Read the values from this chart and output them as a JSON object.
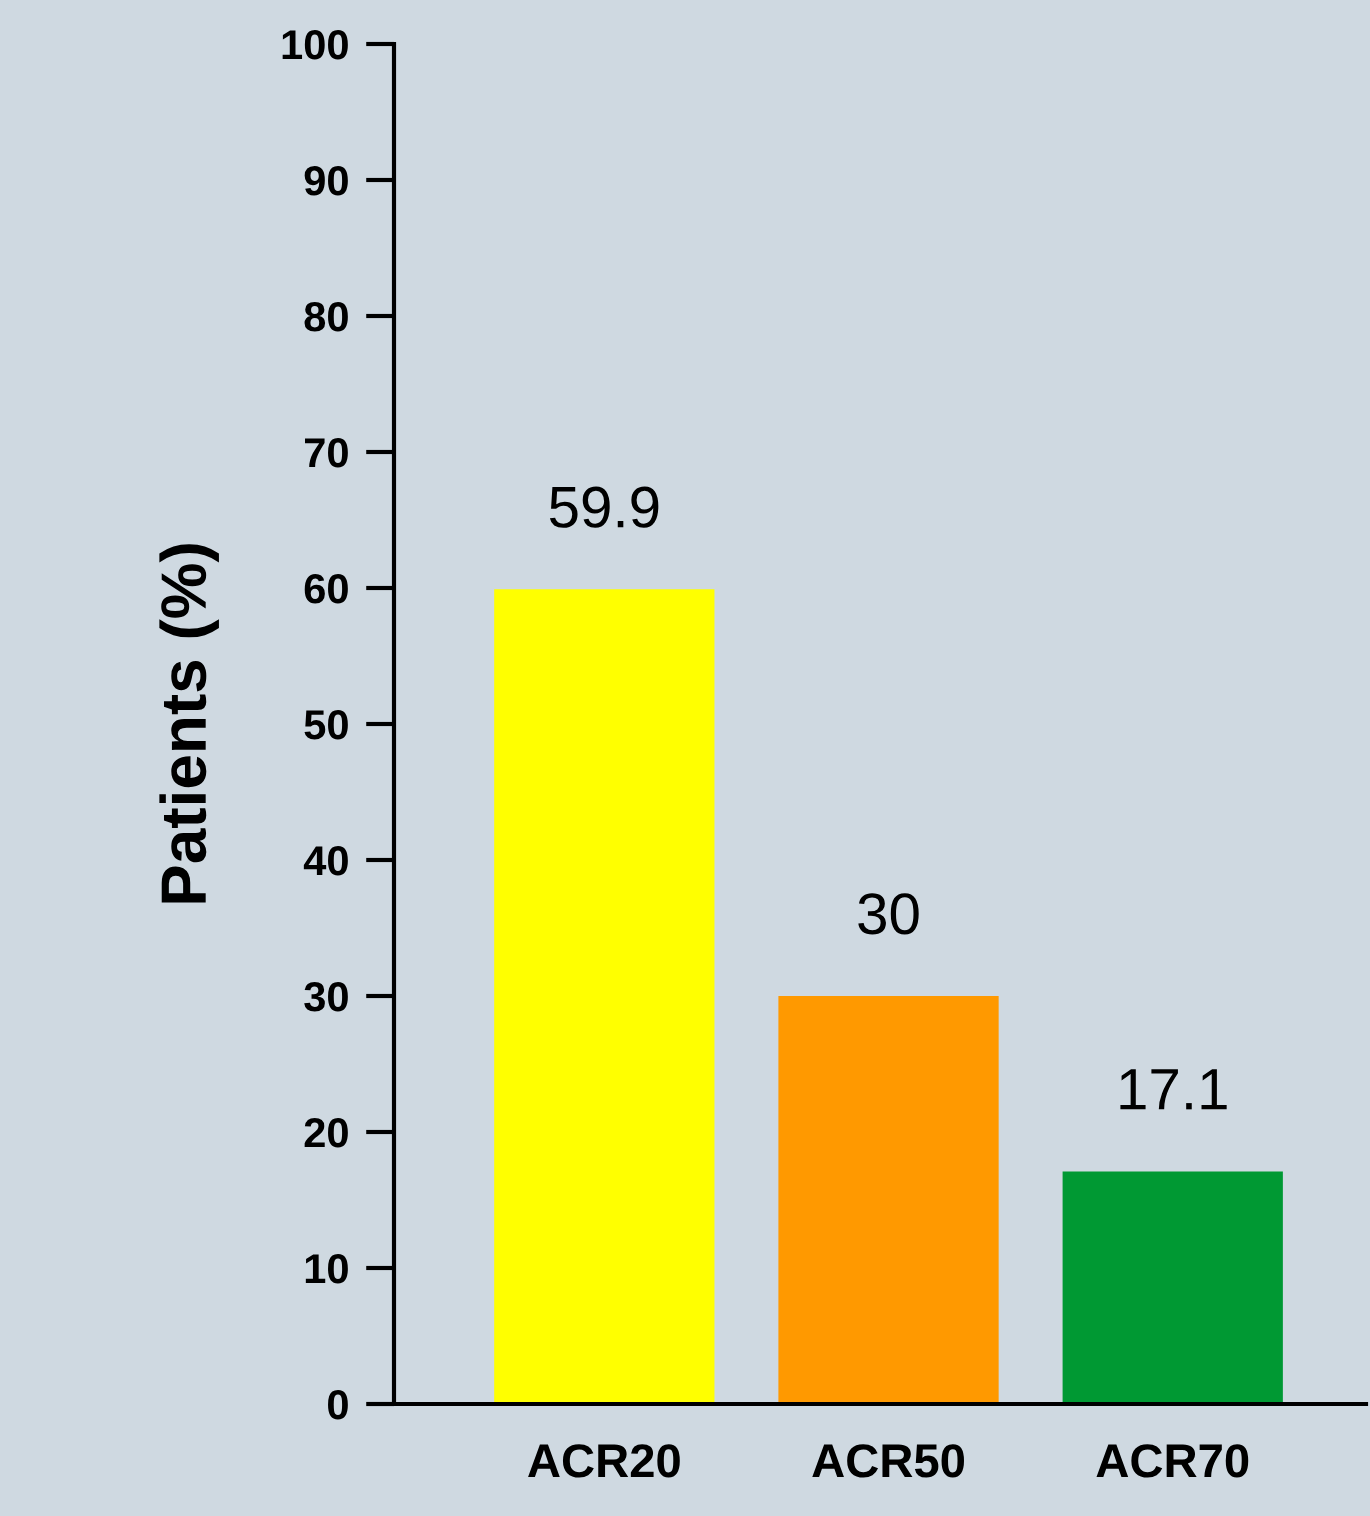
{
  "chart_data": {
    "type": "bar",
    "ylabel": "Patients (%)",
    "categories": [
      "ACR20",
      "ACR50",
      "ACR70"
    ],
    "values": [
      59.9,
      30,
      17.1
    ],
    "colors": [
      "#ffff00",
      "#ff9900",
      "#009933"
    ],
    "ylim": [
      0,
      100
    ],
    "yticks": [
      0,
      10,
      20,
      30,
      40,
      50,
      60,
      70,
      80,
      90,
      100
    ],
    "data_labels": true,
    "grid": false
  }
}
